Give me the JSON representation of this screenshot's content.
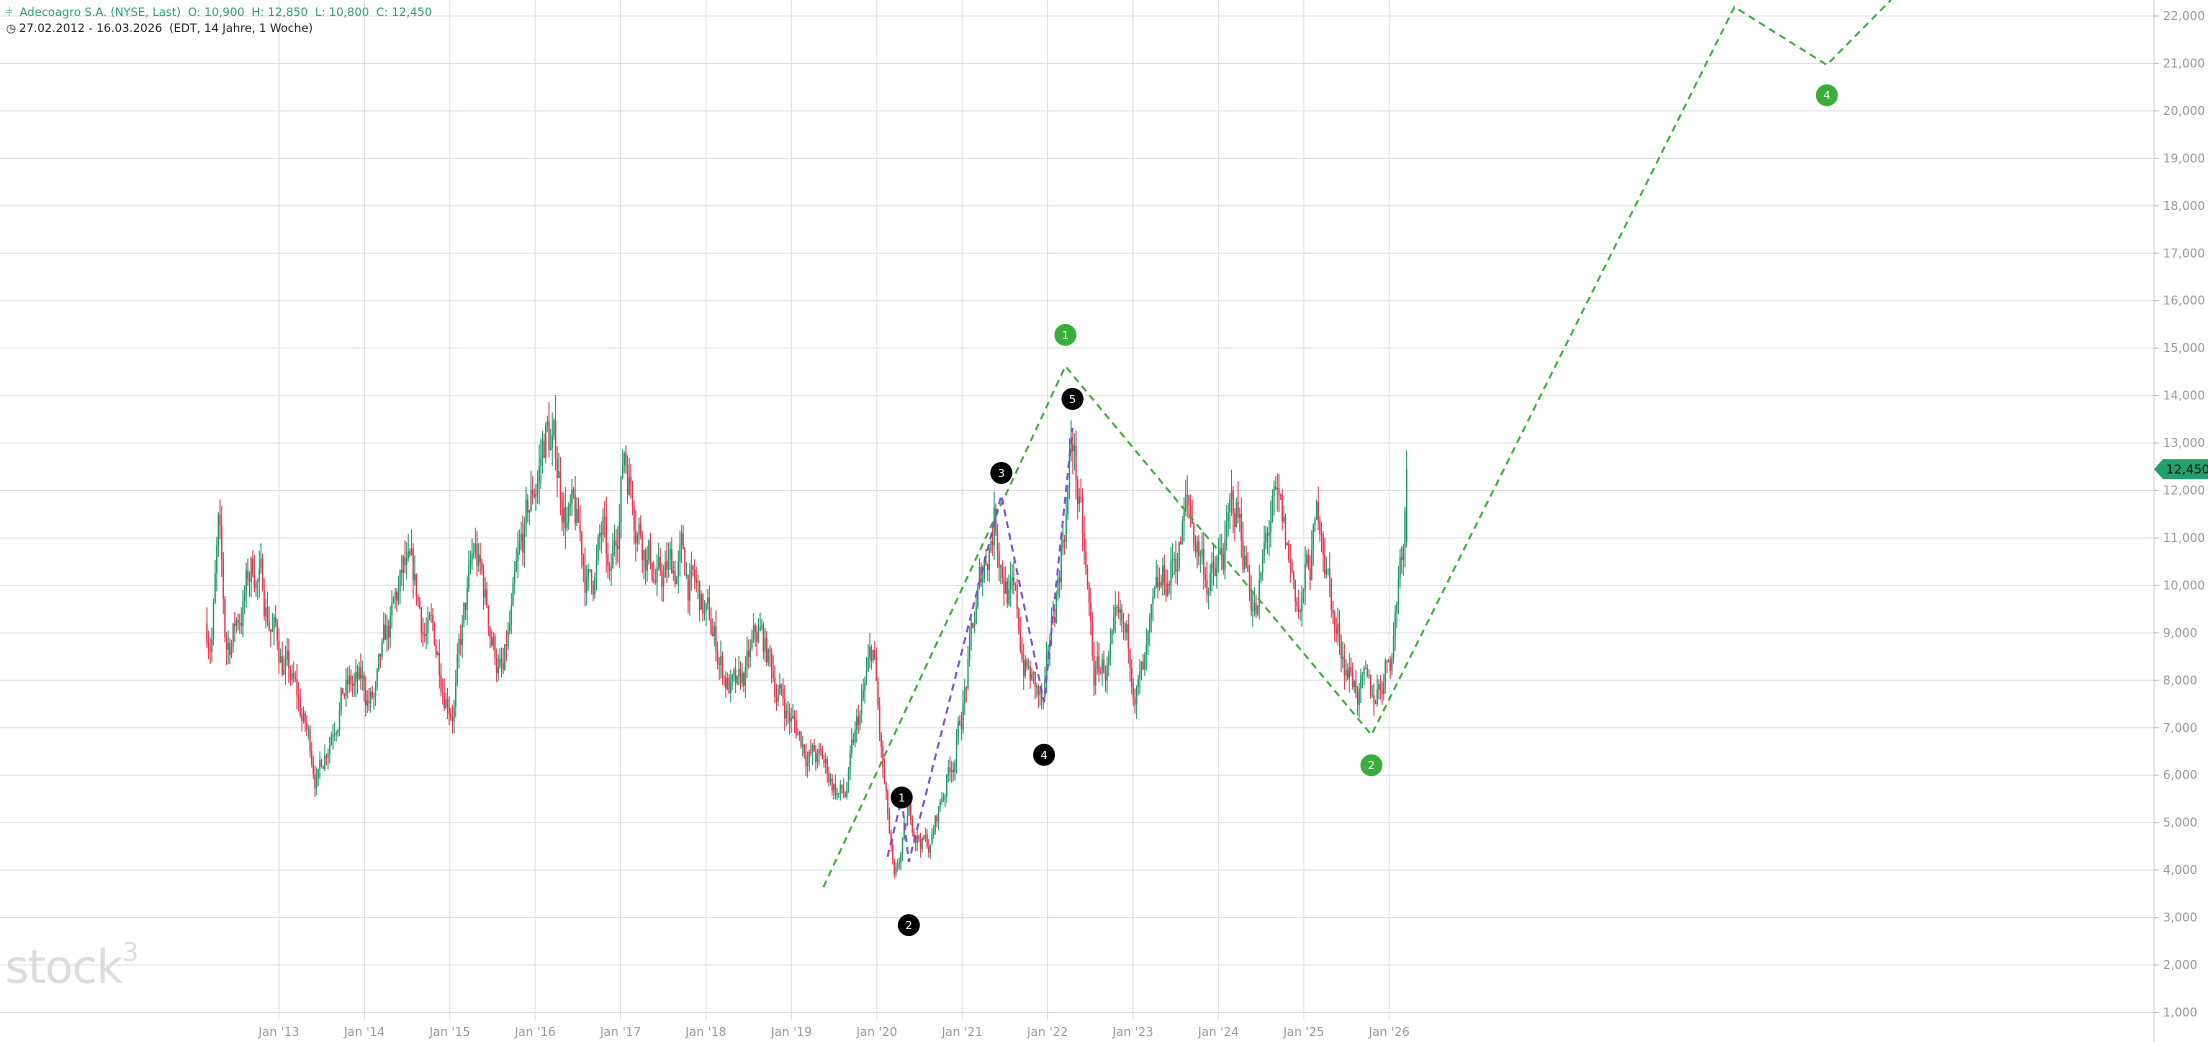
{
  "header": {
    "symbol": "Adecoagro S.A. (NYSE, Last)",
    "open": "O: 10,900",
    "high": "H: 12,850",
    "low": "L: 10,800",
    "close": "C: 12,450",
    "range": "27.02.2012 - 16.03.2026",
    "range_info": "(EDT, 14 Jahre, 1 Woche)",
    "icon": "candlestick-icon",
    "clock_icon": "clock-icon"
  },
  "logo": {
    "text": "stock",
    "sup": "3"
  },
  "colors": {
    "up": "#1f9a6a",
    "down": "#e8334f",
    "wave_green": "#3aae3a",
    "wave_purple": "#7b4fd6",
    "last_price_tag": "#22a06b",
    "grid": "#dedfe6"
  },
  "chart_data": {
    "type": "candlestick",
    "interval": "weekly",
    "ylim": [
      1000,
      22000
    ],
    "yticks": [
      "1,000",
      "2,000",
      "3,000",
      "4,000",
      "5,000",
      "6,000",
      "7,000",
      "8,000",
      "9,000",
      "10,000",
      "11,000",
      "12,000",
      "13,000",
      "14,000",
      "15,000",
      "16,000",
      "17,000",
      "18,000",
      "19,000",
      "20,000",
      "21,000",
      "22,000"
    ],
    "xticks": [
      "Jan '13",
      "Jan '14",
      "Jan '15",
      "Jan '16",
      "Jan '17",
      "Jan '18",
      "Jan '19",
      "Jan '20",
      "Jan '21",
      "Jan '22",
      "Jan '23",
      "Jan '24",
      "Jan '25",
      "Jan '26"
    ],
    "grid": true,
    "last_price": {
      "value": 12450,
      "label": "12,450"
    },
    "last_candle": {
      "open": 10900,
      "high": 12850,
      "low": 10800,
      "close": 12450
    },
    "price_path": [
      [
        "2012-03",
        9200
      ],
      [
        "2012-04",
        11000
      ],
      [
        "2012-05",
        8500
      ],
      [
        "2012-09",
        10500
      ],
      [
        "2013-06",
        6000
      ],
      [
        "2013-09",
        8000
      ],
      [
        "2014-02",
        7500
      ],
      [
        "2014-06",
        10000
      ],
      [
        "2015-01",
        7800
      ],
      [
        "2015-04",
        10500
      ],
      [
        "2015-08",
        8000
      ],
      [
        "2016-02",
        13300
      ],
      [
        "2016-08",
        10000
      ],
      [
        "2016-10",
        11000
      ],
      [
        "2016-11",
        9500
      ],
      [
        "2017-01",
        13000
      ],
      [
        "2017-06",
        10000
      ],
      [
        "2017-09",
        10500
      ],
      [
        "2018-05",
        7500
      ],
      [
        "2018-08",
        8800
      ],
      [
        "2019-01",
        7000
      ],
      [
        "2019-08",
        5500
      ],
      [
        "2019-12",
        8500
      ],
      [
        "2020-01",
        6500
      ],
      [
        "2020-03",
        3500
      ],
      [
        "2020-05",
        5000
      ],
      [
        "2020-08",
        4500
      ],
      [
        "2020-12",
        7000
      ],
      [
        "2021-05",
        11700
      ],
      [
        "2021-09",
        8500
      ],
      [
        "2021-12",
        7200
      ],
      [
        "2022-04",
        13200
      ],
      [
        "2022-07",
        8000
      ],
      [
        "2022-10",
        8500
      ],
      [
        "2023-02",
        8000
      ],
      [
        "2023-08",
        11500
      ],
      [
        "2023-12",
        10000
      ],
      [
        "2024-03",
        11500
      ],
      [
        "2024-06",
        9500
      ],
      [
        "2024-08",
        11500
      ],
      [
        "2024-12",
        9500
      ],
      [
        "2025-03",
        11500
      ],
      [
        "2025-05",
        9000
      ],
      [
        "2025-10",
        7300
      ],
      [
        "2026-01",
        9000
      ],
      [
        "2026-03",
        12450
      ]
    ],
    "waves": [
      {
        "color": "#3aae3a",
        "points": [
          [
            "2019-05",
            3640
          ],
          [
            "2022-03",
            14620
          ],
          [
            "2025-10",
            6850
          ],
          [
            "2030-01",
            22190
          ],
          [
            "2031-02",
            20970
          ],
          [
            "2031-11",
            22340
          ]
        ],
        "labels": [
          {
            "text": "1",
            "date": "2022-03",
            "price": 15280
          },
          {
            "text": "2",
            "date": "2025-10",
            "price": 6210
          },
          {
            "text": "4",
            "date": "2031-02",
            "price": 20330
          }
        ],
        "label_color": "#3aae3a"
      },
      {
        "color": "#7b4fd6",
        "points": [
          [
            "2020-02",
            4280
          ],
          [
            "2020-04",
            5500
          ],
          [
            "2020-05",
            4170
          ],
          [
            "2021-06",
            11900
          ],
          [
            "2021-12",
            7540
          ],
          [
            "2022-04",
            13320
          ]
        ],
        "labels": [
          {
            "text": "1",
            "date": "2020-04",
            "price": 5530
          },
          {
            "text": "2",
            "date": "2020-05",
            "price": 2840
          },
          {
            "text": "3",
            "date": "2021-06",
            "price": 12370
          },
          {
            "text": "4",
            "date": "2021-12",
            "price": 6430
          },
          {
            "text": "5",
            "date": "2022-04",
            "price": 13930
          }
        ],
        "label_color": "#000000"
      }
    ]
  }
}
